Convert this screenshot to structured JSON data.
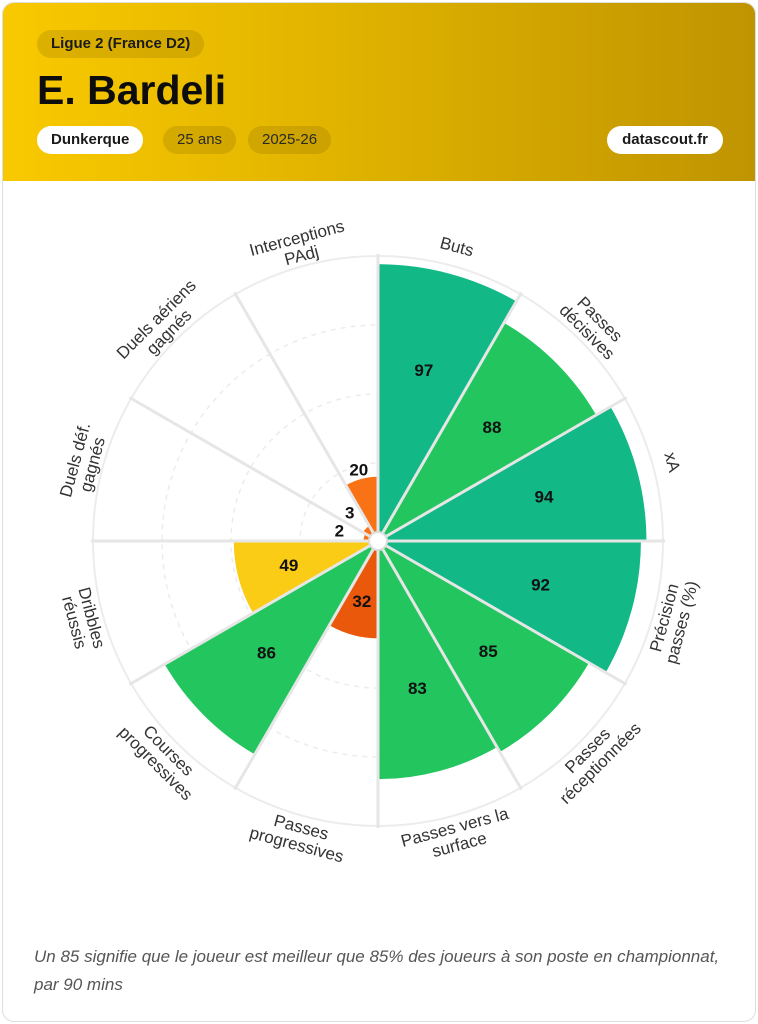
{
  "header": {
    "league": "Ligue 2 (France D2)",
    "player_name": "E. Bardeli",
    "club": "Dunkerque",
    "age": "25 ans",
    "season": "2025-26",
    "brand": "datascout.fr"
  },
  "footnote": "Un 85 signifie que le joueur est meilleur que 85% des joueurs à son poste en championnat, par 90 mins",
  "colors": {
    "elite": "#12b886",
    "high": "#22c55e",
    "mid": "#facc15",
    "low": "#f97316",
    "very_low": "#ea580c"
  },
  "chart_data": {
    "type": "polar-bar",
    "scale": [
      0,
      100
    ],
    "categories": [
      {
        "label": [
          "Buts"
        ],
        "value": 97,
        "color": "#12b886"
      },
      {
        "label": [
          "Passes",
          "décisives"
        ],
        "value": 88,
        "color": "#22c55e"
      },
      {
        "label": [
          "xA"
        ],
        "value": 94,
        "color": "#12b886"
      },
      {
        "label": [
          "Précision",
          "passes (%)"
        ],
        "value": 92,
        "color": "#12b886"
      },
      {
        "label": [
          "Passes",
          "réceptionnées"
        ],
        "value": 85,
        "color": "#22c55e"
      },
      {
        "label": [
          "Passes vers la",
          "surface"
        ],
        "value": 83,
        "color": "#22c55e"
      },
      {
        "label": [
          "Passes",
          "progressives"
        ],
        "value": 32,
        "color": "#ea580c"
      },
      {
        "label": [
          "Courses",
          "progressives"
        ],
        "value": 86,
        "color": "#22c55e"
      },
      {
        "label": [
          "Dribbles",
          "réussis"
        ],
        "value": 49,
        "color": "#facc15"
      },
      {
        "label": [
          "Duels déf.",
          "gagnés"
        ],
        "value": 2,
        "color": "#f97316"
      },
      {
        "label": [
          "Duels aériens",
          "gagnés"
        ],
        "value": 3,
        "color": "#f97316"
      },
      {
        "label": [
          "Interceptions",
          "PAdj"
        ],
        "value": 20,
        "color": "#f97316"
      }
    ]
  }
}
